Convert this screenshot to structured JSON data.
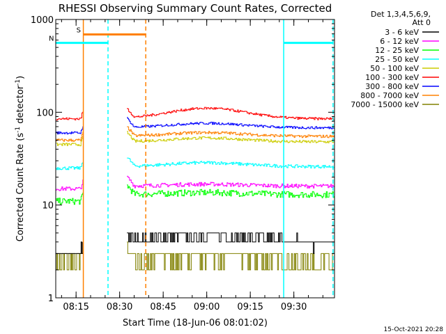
{
  "chart_data": {
    "type": "line",
    "title": "RHESSI Observing Summary Count Rates, Corrected",
    "xlabel": "Start Time (18-Jun-06 08:01:02)",
    "ylabel_parts": [
      "Corrected Count Rate (s",
      "-1",
      " detector",
      "-1",
      ")"
    ],
    "y_scale": "log",
    "ylim": [
      1,
      1000
    ],
    "xlim_minutes": [
      8.0,
      104.0
    ],
    "y_ticks": [
      {
        "value": 1,
        "label": "1"
      },
      {
        "value": 10,
        "label": "10"
      },
      {
        "value": 100,
        "label": "100"
      },
      {
        "value": 1000,
        "label": "1000"
      }
    ],
    "x_ticks": [
      {
        "minute": 15,
        "label": "08:15"
      },
      {
        "minute": 30,
        "label": "08:30"
      },
      {
        "minute": 45,
        "label": "08:45"
      },
      {
        "minute": 60,
        "label": "09:00"
      },
      {
        "minute": 75,
        "label": "09:15"
      },
      {
        "minute": 90,
        "label": "09:30"
      }
    ],
    "legend": {
      "position": "right",
      "header": [
        "Det 1,3,4,5,6,9,",
        "Att 0"
      ],
      "entries": [
        {
          "label": "3 - 6 keV",
          "color": "#000000"
        },
        {
          "label": "6 - 12 keV",
          "color": "#ff00ff"
        },
        {
          "label": "12 - 25 keV",
          "color": "#00ff00"
        },
        {
          "label": "25 - 50 keV",
          "color": "#00ffff"
        },
        {
          "label": "50 - 100 keV",
          "color": "#cccc00"
        },
        {
          "label": "100 - 300 keV",
          "color": "#ff0000"
        },
        {
          "label": "300 - 800 keV",
          "color": "#0000ff"
        },
        {
          "label": "800 - 7000 keV",
          "color": "#ff8000"
        },
        {
          "label": "7000 - 15000 keV",
          "color": "#808000"
        }
      ]
    },
    "segments_minutes": [
      [
        8.0,
        17.5
      ],
      [
        32.5,
        104.0
      ]
    ],
    "series": [
      {
        "color": "#ff0000",
        "base": 85,
        "bump": 0.3,
        "noise": 0.03,
        "pre": 85
      },
      {
        "color": "#0000ff",
        "base": 68,
        "bump": 0.12,
        "noise": 0.03,
        "pre": 60
      },
      {
        "color": "#ff8000",
        "base": 55,
        "bump": 0.1,
        "noise": 0.035,
        "pre": 50
      },
      {
        "color": "#cccc00",
        "base": 48,
        "bump": 0.1,
        "noise": 0.035,
        "pre": 45
      },
      {
        "color": "#00ffff",
        "base": 26,
        "bump": 0.1,
        "noise": 0.04,
        "pre": 25
      },
      {
        "color": "#ff00ff",
        "base": 16,
        "bump": 0.05,
        "noise": 0.05,
        "pre": 15
      },
      {
        "color": "#00ff00",
        "base": 13,
        "bump": 0.05,
        "noise": 0.08,
        "pre": 11
      },
      {
        "color": "#000000",
        "base": 4,
        "bump": 0.2,
        "noise": 0.15,
        "pre": 3
      },
      {
        "color": "#808000",
        "base": 2.5,
        "bump": 0.15,
        "noise": 0.18,
        "pre": 2.4
      }
    ],
    "flag_bars": [
      {
        "label": "S",
        "color": "#ff8000",
        "start_minute": 17.5,
        "end_minute": 39.0,
        "level": 690
      },
      {
        "label": "N",
        "color": "#00ffff",
        "start_minute": 8.0,
        "end_minute": 26.0,
        "level": 560
      },
      {
        "label": "",
        "color": "#00ffff",
        "start_minute": 86.5,
        "end_minute": 103.5,
        "level": 560
      }
    ],
    "markers": [
      {
        "minute": 17.5,
        "color": "#ff8000",
        "style": "solid"
      },
      {
        "minute": 26.0,
        "color": "#00ffff",
        "style": "dashed"
      },
      {
        "minute": 39.0,
        "color": "#ff8000",
        "style": "dashed"
      },
      {
        "minute": 86.5,
        "color": "#00ffff",
        "style": "solid"
      },
      {
        "minute": 103.5,
        "color": "#00ffff",
        "style": "dashed"
      }
    ],
    "footer": "15-Oct-2021 20:28"
  }
}
